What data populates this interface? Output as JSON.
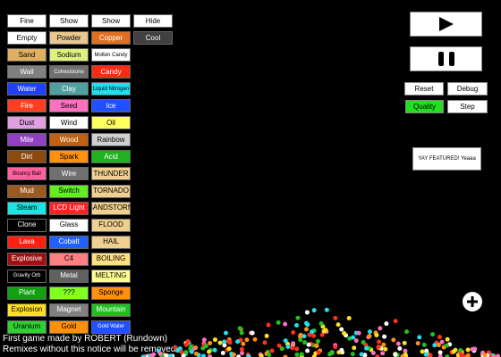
{
  "elements": {
    "columns": [
      [
        {
          "label": "Fine",
          "color": "#ffffff"
        },
        {
          "label": "Empty",
          "color": "#ffffff"
        },
        {
          "label": "Sand",
          "color": "#e0b060"
        },
        {
          "label": "Wall",
          "color": "#808080"
        },
        {
          "label": "Water",
          "color": "#2040ff"
        },
        {
          "label": "Fire",
          "color": "#ff4020"
        },
        {
          "label": "Dust",
          "color": "#e0a0e0"
        },
        {
          "label": "Mite",
          "color": "#9040c0"
        },
        {
          "label": "Dirt",
          "color": "#8a4a10"
        },
        {
          "label": "Bouncy Ball",
          "color": "#ff60a0"
        },
        {
          "label": "Mud",
          "color": "#9a5a20"
        },
        {
          "label": "Steam",
          "color": "#20e0e0"
        },
        {
          "label": "Clone",
          "color": "#000000"
        },
        {
          "label": "Lava",
          "color": "#ff2010"
        },
        {
          "label": "Explosive",
          "color": "#a01010"
        },
        {
          "label": "Gravity Orb",
          "color": "#000000"
        },
        {
          "label": "Plant",
          "color": "#10a010"
        },
        {
          "label": "Explosion",
          "color": "#ffe020"
        },
        {
          "label": "Uranium",
          "color": "#30d030"
        }
      ],
      [
        {
          "label": "Show",
          "color": "#ffffff"
        },
        {
          "label": "Powder",
          "color": "#e8c890"
        },
        {
          "label": "Sodium",
          "color": "#e0f080"
        },
        {
          "label": "Cohesistone",
          "color": "#707070"
        },
        {
          "label": "Clay",
          "color": "#50a0a0"
        },
        {
          "label": "Seed",
          "color": "#ff70c0"
        },
        {
          "label": "Wind",
          "color": "#ffffff"
        },
        {
          "label": "Wood",
          "color": "#c06010"
        },
        {
          "label": "Spark",
          "color": "#ff9010"
        },
        {
          "label": "Wire",
          "color": "#707070"
        },
        {
          "label": "Switch",
          "color": "#60f020"
        },
        {
          "label": "LCD Light",
          "color": "#ff2020"
        },
        {
          "label": "Glass",
          "color": "#ffffff"
        },
        {
          "label": "Cobalt",
          "color": "#2060ff"
        },
        {
          "label": "C4",
          "color": "#ff8080"
        },
        {
          "label": "Metal",
          "color": "#606060"
        },
        {
          "label": "???",
          "color": "#80ff20"
        },
        {
          "label": "Magnet",
          "color": "#808080"
        },
        {
          "label": "Gold",
          "color": "#ff9010"
        }
      ],
      [
        {
          "label": "Show",
          "color": "#ffffff"
        },
        {
          "label": "Copper",
          "color": "#e07020"
        },
        {
          "label": "Molten Candy",
          "color": "#ffffff"
        },
        {
          "label": "Candy",
          "color": "#f03010"
        },
        {
          "label": "Liquid Nitrogen",
          "color": "#20e0f0"
        },
        {
          "label": "Ice",
          "color": "#2050ff"
        },
        {
          "label": "Oil",
          "color": "#ffff60"
        },
        {
          "label": "Rainbow",
          "color": "#d0d0d0"
        },
        {
          "label": "Acid",
          "color": "#20b020"
        },
        {
          "label": "THUNDER",
          "color": "#f0d090"
        },
        {
          "label": "TORNADO",
          "color": "#f0d090"
        },
        {
          "label": "SANDSTORM",
          "color": "#f0d090"
        },
        {
          "label": "FLOOD",
          "color": "#f0d090"
        },
        {
          "label": "HAIL",
          "color": "#f0d090"
        },
        {
          "label": "BOILING",
          "color": "#ffe080"
        },
        {
          "label": "MELTING",
          "color": "#ffff90"
        },
        {
          "label": "Sponge",
          "color": "#ff9010"
        },
        {
          "label": "Mountain",
          "color": "#20c020"
        },
        {
          "label": "Gold Water",
          "color": "#2050ff"
        }
      ],
      [
        {
          "label": "Hide",
          "color": "#ffffff"
        },
        {
          "label": "Cool",
          "color": "#404040"
        }
      ]
    ]
  },
  "controls": {
    "reset": "Reset",
    "debug": "Debug",
    "quality": "Quality",
    "step": "Step",
    "featured": "YAY FEATURED! Yeaaa"
  },
  "footer": {
    "lines": [
      "First game made by ROBERT (Rundown)",
      "Remixes without this notice will be removed"
    ]
  }
}
